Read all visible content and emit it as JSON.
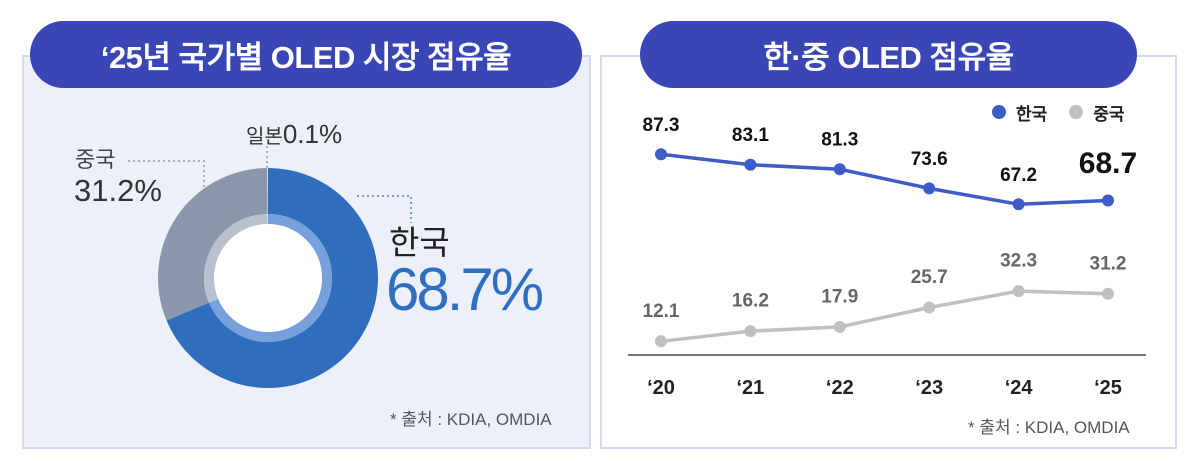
{
  "colors": {
    "title_pill": "#3a46b6",
    "leader_line": "#8f99ad",
    "korea_leader_line": "#4f7fd0"
  },
  "chart_data": [
    {
      "type": "pie",
      "style": "donut",
      "title": "‘25년 국가별 OLED 시장 점유율",
      "unit": "%",
      "slices": [
        {
          "name": "한국",
          "value": 68.7,
          "color": "#2e6ebd",
          "inner_color": "#76a1dc"
        },
        {
          "name": "중국",
          "value": 31.2,
          "color": "#8b97ab",
          "inner_color": "#b9c1ce"
        },
        {
          "name": "일본",
          "value": 0.1,
          "color": "#e8ecf4",
          "inner_color": "#f2f4f9"
        }
      ],
      "source": "* 출처 : KDIA, OMDIA"
    },
    {
      "type": "line",
      "title": "한·중 OLED 점유율",
      "categories": [
        "‘20",
        "‘21",
        "‘22",
        "‘23",
        "‘24",
        "‘25"
      ],
      "series": [
        {
          "name": "한국",
          "values": [
            87.3,
            83.1,
            81.3,
            73.6,
            67.2,
            68.7
          ],
          "color": "#3d5cc8"
        },
        {
          "name": "중국",
          "values": [
            12.1,
            16.2,
            17.9,
            25.7,
            32.3,
            31.2
          ],
          "color": "#c0c0c0"
        }
      ],
      "legend": "top-right",
      "grid": false,
      "source": "* 출처 : KDIA, OMDIA"
    }
  ]
}
